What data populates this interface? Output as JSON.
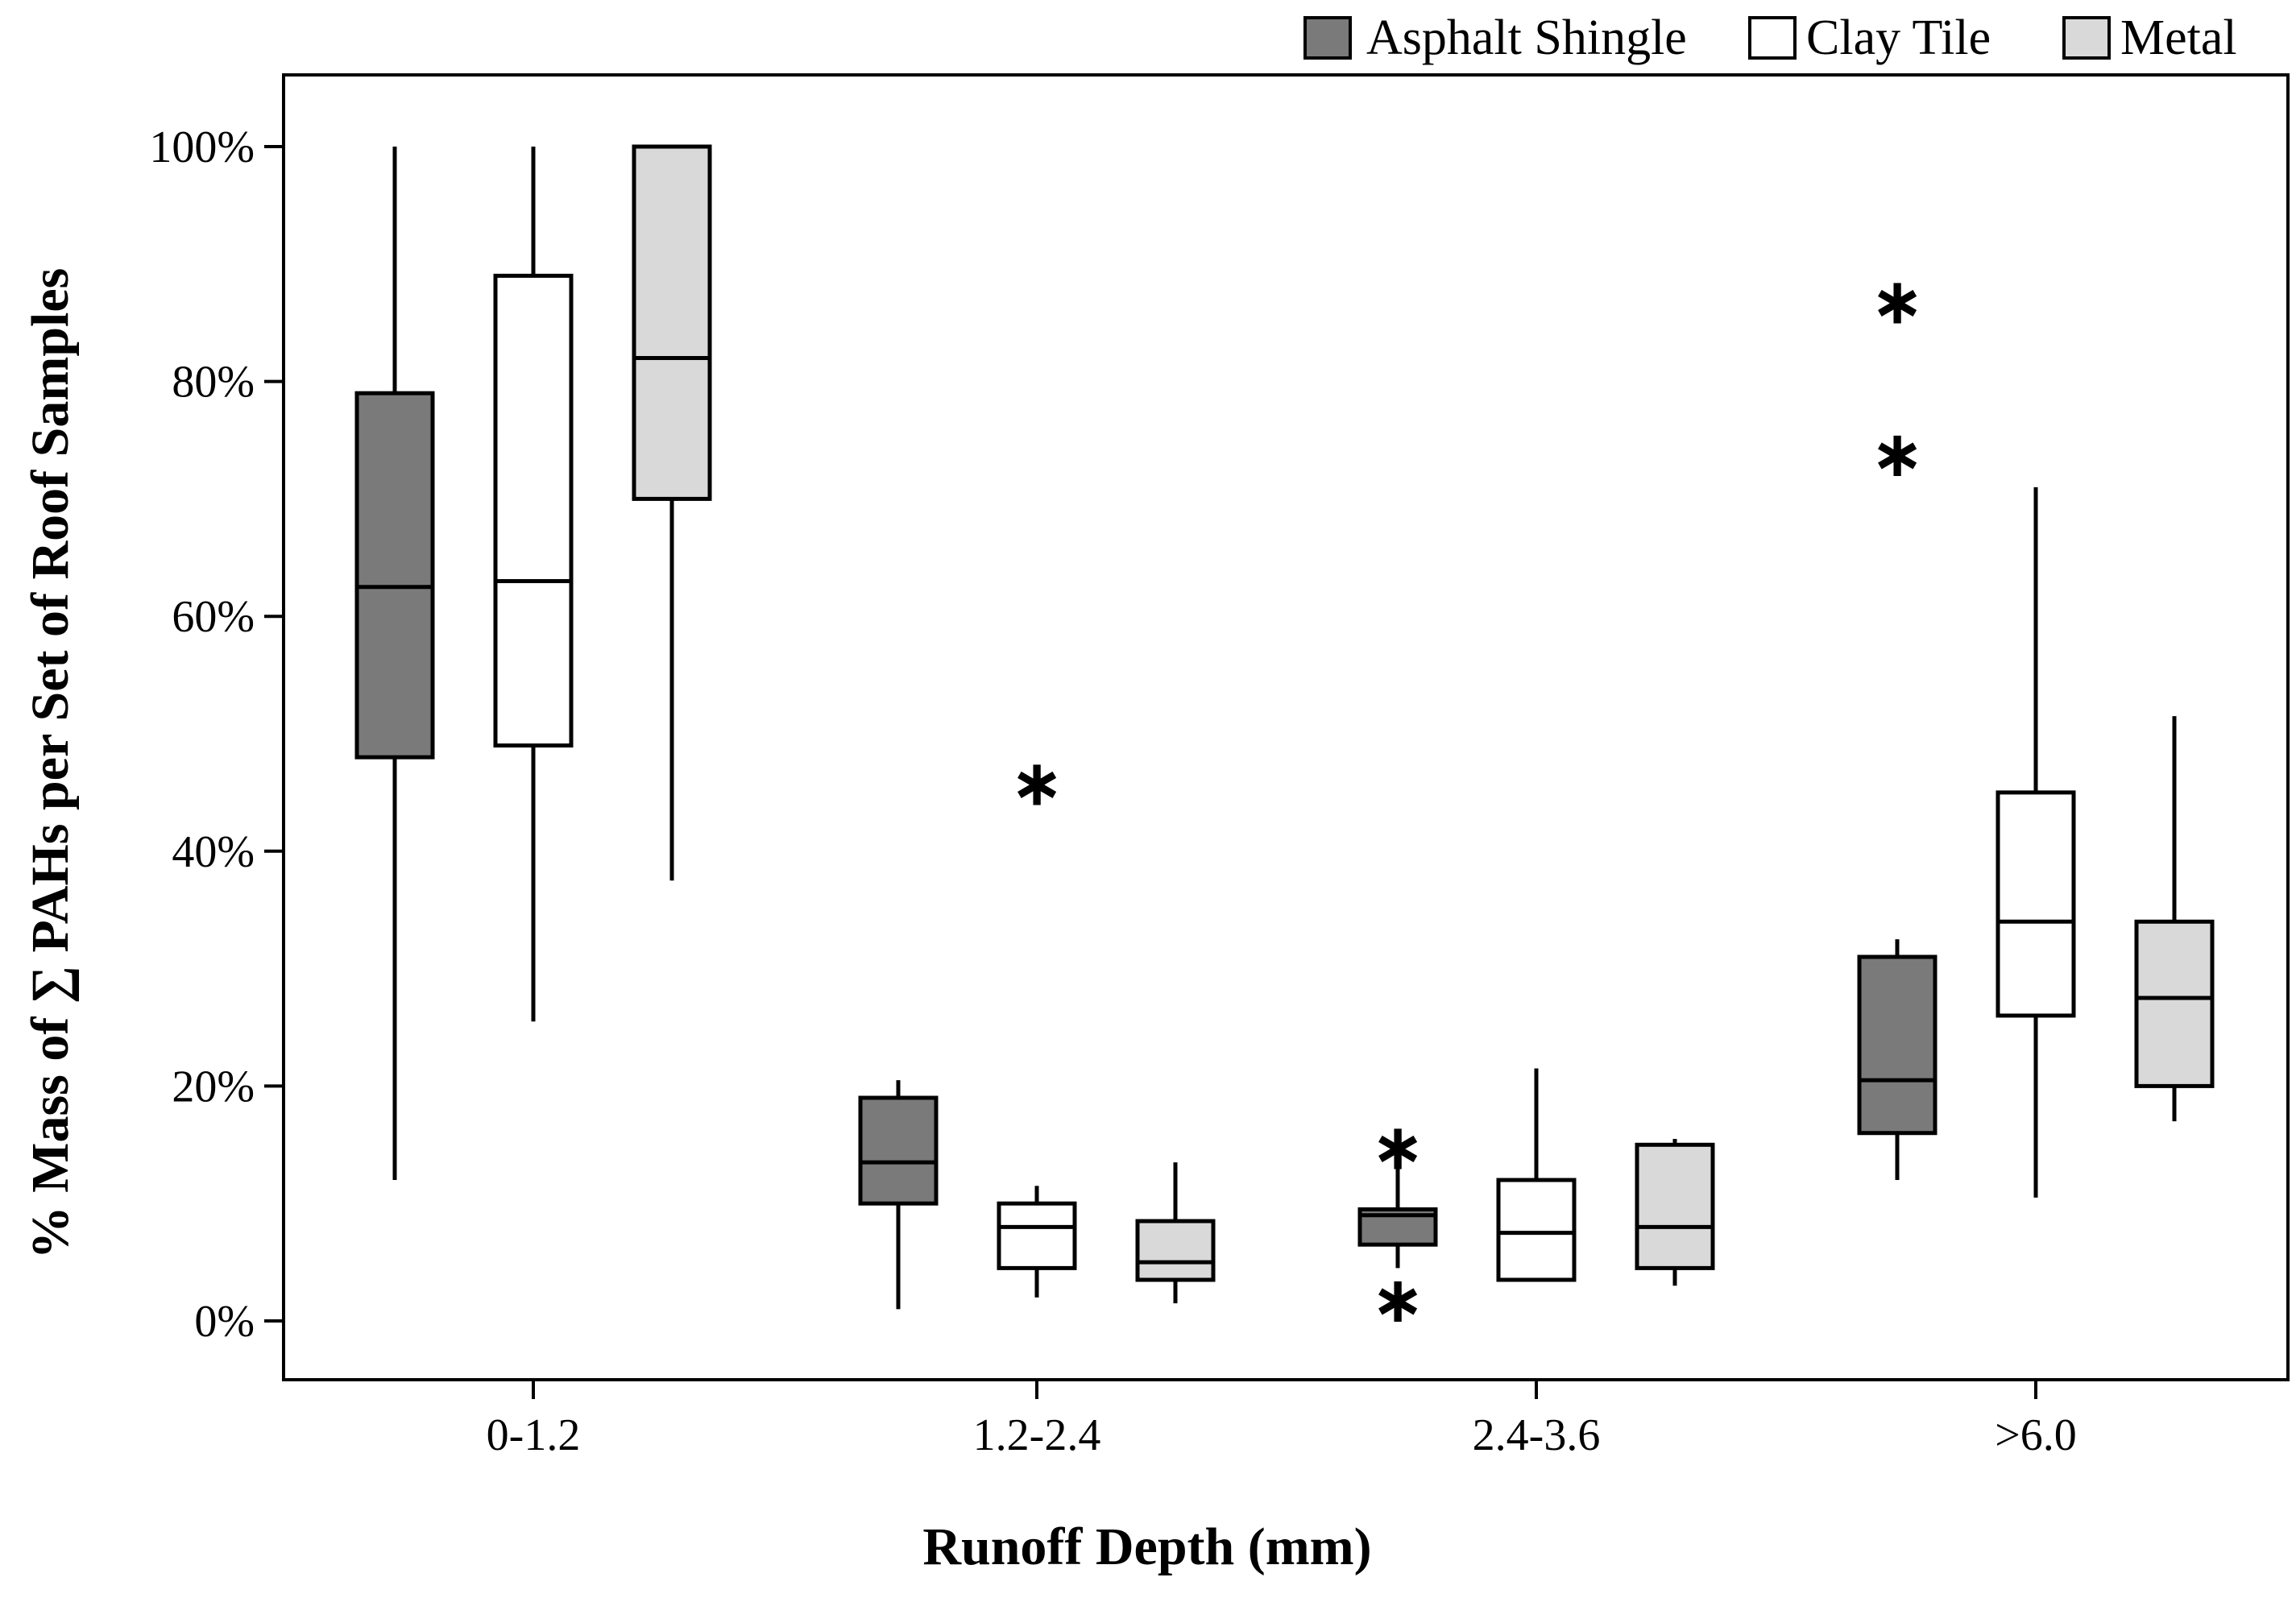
{
  "chart_data": {
    "type": "box",
    "title": "",
    "xlabel": "Runoff Depth (mm)",
    "ylabel": "% Mass of ∑ PAHs per Set of Roof Samples",
    "ylim": [
      -5,
      105
    ],
    "yticks": [
      0,
      20,
      40,
      60,
      80,
      100
    ],
    "ytick_labels": [
      "0%",
      "20%",
      "40%",
      "60%",
      "80%",
      "100%"
    ],
    "categories": [
      "0-1.2",
      "1.2-2.4",
      "2.4-3.6",
      ">6.0"
    ],
    "legend_position": "top-right, above plot",
    "series": [
      {
        "name": "Asphalt Shingle",
        "color": "#7a7a7a",
        "boxes": [
          {
            "whislo": 12,
            "q1": 48,
            "med": 62.5,
            "q3": 79,
            "whishi": 100,
            "fliers": []
          },
          {
            "whislo": 1,
            "q1": 10,
            "med": 13.5,
            "q3": 19,
            "whishi": 20.5,
            "fliers": []
          },
          {
            "whislo": 4.5,
            "q1": 6.5,
            "med": 9,
            "q3": 9.5,
            "whishi": 13.5,
            "fliers": [
              15,
              2
            ]
          },
          {
            "whislo": 12,
            "q1": 16,
            "med": 20.5,
            "q3": 31,
            "whishi": 32.5,
            "fliers": [
              87,
              74
            ]
          }
        ]
      },
      {
        "name": "Clay Tile",
        "color": "#ffffff",
        "boxes": [
          {
            "whislo": 25.5,
            "q1": 49,
            "med": 63,
            "q3": 89,
            "whishi": 100,
            "fliers": []
          },
          {
            "whislo": 2,
            "q1": 4.5,
            "med": 8,
            "q3": 10,
            "whishi": 11.5,
            "fliers": [
              46
            ]
          },
          {
            "whislo": 3.5,
            "q1": 3.5,
            "med": 7.5,
            "q3": 12,
            "whishi": 21.5,
            "fliers": []
          },
          {
            "whislo": 10.5,
            "q1": 26,
            "med": 34,
            "q3": 45,
            "whishi": 71,
            "fliers": []
          }
        ]
      },
      {
        "name": "Metal",
        "color": "#d9d9d9",
        "boxes": [
          {
            "whislo": 37.5,
            "q1": 70,
            "med": 82,
            "q3": 100,
            "whishi": 100,
            "fliers": []
          },
          {
            "whislo": 1.5,
            "q1": 3.5,
            "med": 5,
            "q3": 8.5,
            "whishi": 13.5,
            "fliers": []
          },
          {
            "whislo": 3,
            "q1": 4.5,
            "med": 8,
            "q3": 15,
            "whishi": 15.5,
            "fliers": []
          },
          {
            "whislo": 17,
            "q1": 20,
            "med": 27.5,
            "q3": 34,
            "whishi": 51.5,
            "fliers": []
          }
        ]
      }
    ]
  }
}
